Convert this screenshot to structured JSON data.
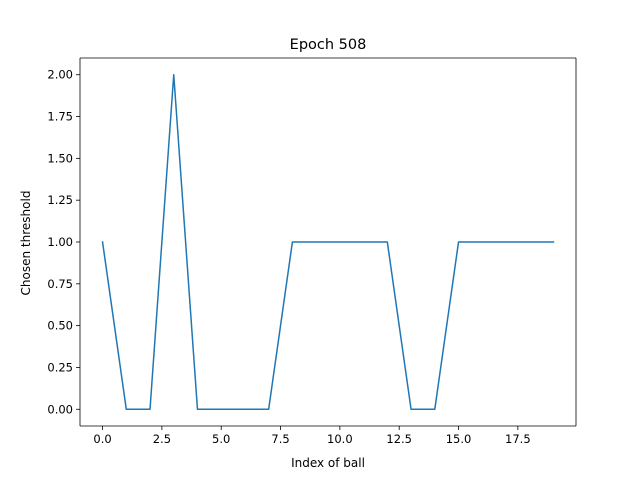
{
  "chart_data": {
    "type": "line",
    "title": "Epoch 508",
    "xlabel": "Index of ball",
    "ylabel": "Chosen threshold",
    "x": [
      0,
      1,
      2,
      3,
      4,
      5,
      6,
      7,
      8,
      9,
      10,
      11,
      12,
      13,
      14,
      15,
      16,
      17,
      18,
      19
    ],
    "series": [
      {
        "values": [
          1,
          0,
          0,
          2,
          0,
          0,
          0,
          0,
          1,
          1,
          1,
          1,
          1,
          0,
          0,
          1,
          1,
          1,
          1,
          1
        ],
        "color": "#1f77b4"
      }
    ],
    "xlim": [
      -0.95,
      19.95
    ],
    "ylim": [
      -0.1,
      2.1
    ],
    "xticks": [
      0,
      2.5,
      5,
      7.5,
      10,
      12.5,
      15,
      17.5
    ],
    "xtick_labels": [
      "0.0",
      "2.5",
      "5.0",
      "7.5",
      "10.0",
      "12.5",
      "15.0",
      "17.5"
    ],
    "yticks": [
      0,
      0.25,
      0.5,
      0.75,
      1,
      1.25,
      1.5,
      1.75,
      2
    ],
    "ytick_labels": [
      "0.00",
      "0.25",
      "0.50",
      "0.75",
      "1.00",
      "1.25",
      "1.50",
      "1.75",
      "2.00"
    ],
    "grid": false,
    "legend": "none"
  }
}
